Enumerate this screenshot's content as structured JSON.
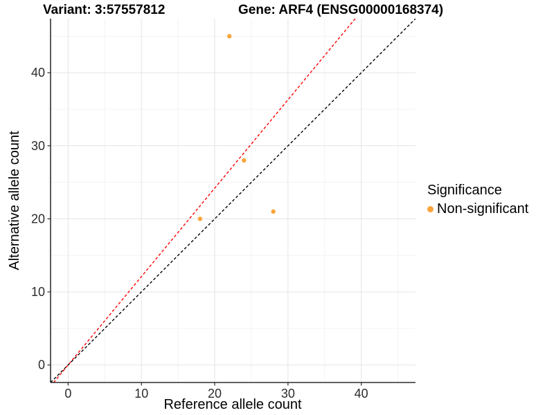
{
  "titles": {
    "variant": "Variant: 3:57557812",
    "gene": "Gene: ARF4 (ENSG00000168374)"
  },
  "chart_data": {
    "type": "scatter",
    "title_left": "Variant: 3:57557812",
    "title_right": "Gene: ARF4 (ENSG00000168374)",
    "xlabel": "Reference allele count",
    "ylabel": "Alternative allele count",
    "xlim": [
      -2.4,
      47.4
    ],
    "ylim": [
      -2.4,
      47.4
    ],
    "x_ticks": [
      0,
      10,
      20,
      30,
      40
    ],
    "y_ticks": [
      0,
      10,
      20,
      30,
      40
    ],
    "x_minor_ticks": [
      5,
      15,
      25,
      35,
      45
    ],
    "y_minor_ticks": [
      5,
      15,
      25,
      35,
      45
    ],
    "grid": true,
    "legend_position": "right",
    "legend_title": "Significance",
    "series": [
      {
        "name": "Non-significant",
        "color": "#FAA43A",
        "points": [
          [
            18,
            20
          ],
          [
            22,
            45
          ],
          [
            24,
            28
          ],
          [
            28,
            21
          ]
        ]
      }
    ],
    "reference_lines": [
      {
        "name": "identity-line",
        "slope": 1,
        "intercept": 0,
        "color": "#000000",
        "style": "dashed"
      },
      {
        "name": "ratio-line",
        "slope": 1.21,
        "intercept": 0,
        "color": "#FF0000",
        "style": "dashed"
      }
    ],
    "colors": {
      "point": "#FAA43A",
      "major_grid": "#E4E4E4",
      "minor_grid": "#F3F3F3",
      "axis_line": "#000000",
      "tick_text": "#2b2b2b"
    }
  }
}
